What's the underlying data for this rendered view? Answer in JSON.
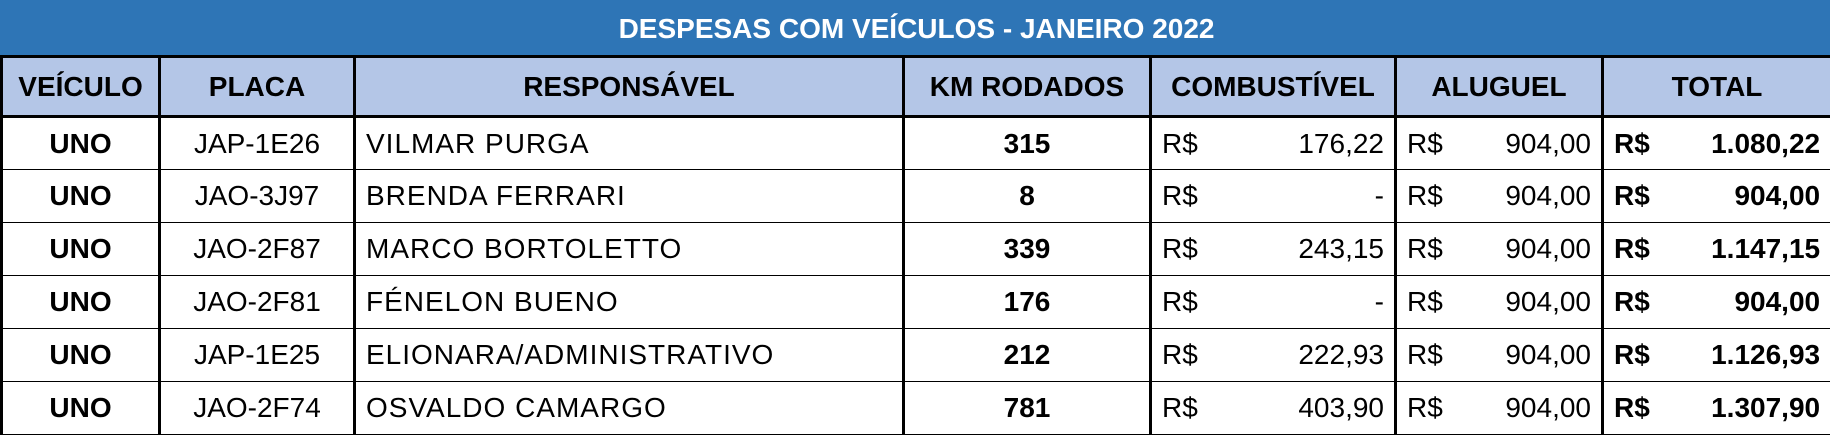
{
  "table": {
    "title": "DESPESAS COM VEÍCULOS - JANEIRO 2022",
    "columns": [
      "VEÍCULO",
      "PLACA",
      "RESPONSÁVEL",
      "KM RODADOS",
      "COMBUSTÍVEL",
      "ALUGUEL",
      "TOTAL"
    ],
    "rows": [
      [
        "UNO",
        "JAP-1E26",
        "VILMAR PURGA",
        "315",
        "R$",
        "176,22",
        "R$",
        "904,00",
        "R$",
        "1.080,22"
      ],
      [
        "UNO",
        "JAO-3J97",
        "BRENDA FERRARI",
        "8",
        "R$",
        "-",
        "R$",
        "904,00",
        "R$",
        "904,00"
      ],
      [
        "UNO",
        "JAO-2F87",
        "MARCO BORTOLETTO",
        "339",
        "R$",
        "243,15",
        "R$",
        "904,00",
        "R$",
        "1.147,15"
      ],
      [
        "UNO",
        "JAO-2F81",
        "FÉNELON BUENO",
        "176",
        "R$",
        "-",
        "R$",
        "904,00",
        "R$",
        "904,00"
      ],
      [
        "UNO",
        "JAP-1E25",
        "ELIONARA/ADMINISTRATIVO",
        "212",
        "R$",
        "222,93",
        "R$",
        "904,00",
        "R$",
        "1.126,93"
      ],
      [
        "UNO",
        "JAO-2F74",
        "OSVALDO CAMARGO",
        "781",
        "R$",
        "403,90",
        "R$",
        "904,00",
        "R$",
        "1.307,90"
      ]
    ]
  }
}
